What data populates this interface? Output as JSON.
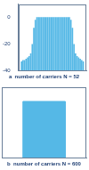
{
  "chart_data": [
    {
      "type": "bar",
      "title": "a  number of carriers N = 52",
      "x": [
        -20,
        -19,
        -18,
        -17,
        -16,
        -15,
        -14,
        -13,
        -12,
        -11,
        -10,
        -9,
        -8,
        -7,
        -6,
        -5,
        -4,
        -3,
        -2,
        -1,
        0,
        1,
        2,
        3,
        4,
        5,
        6,
        7,
        8,
        9,
        10,
        11,
        12,
        13,
        14,
        15,
        16,
        17,
        18,
        19,
        20
      ],
      "values": [
        -33,
        -32,
        -32,
        -31,
        -30,
        -29,
        -27,
        -20,
        -8,
        -2,
        0,
        0,
        0,
        0,
        0,
        0,
        0,
        0,
        0,
        0,
        0,
        0,
        0,
        0,
        0,
        0,
        0,
        0,
        0,
        0,
        0,
        0,
        -2,
        -8,
        -20,
        -27,
        -29,
        -30,
        -31,
        -32,
        -33
      ],
      "color": "#55b8e6",
      "xlim": [
        -22,
        22
      ],
      "ylim": [
        -40,
        10
      ],
      "yticks": [
        -40,
        -20,
        0
      ],
      "tick_labels": "y",
      "grid": false
    },
    {
      "type": "line",
      "title": "b  number of carriers N = 600",
      "x": [
        -10,
        -5,
        -5,
        5,
        5,
        10
      ],
      "values": [
        -40,
        -40,
        0,
        0,
        -40,
        -40
      ],
      "color": "#55b8e6",
      "xlim": [
        -10,
        10
      ],
      "ylim": [
        -40,
        10
      ],
      "tick_labels": false,
      "grid": false
    }
  ]
}
